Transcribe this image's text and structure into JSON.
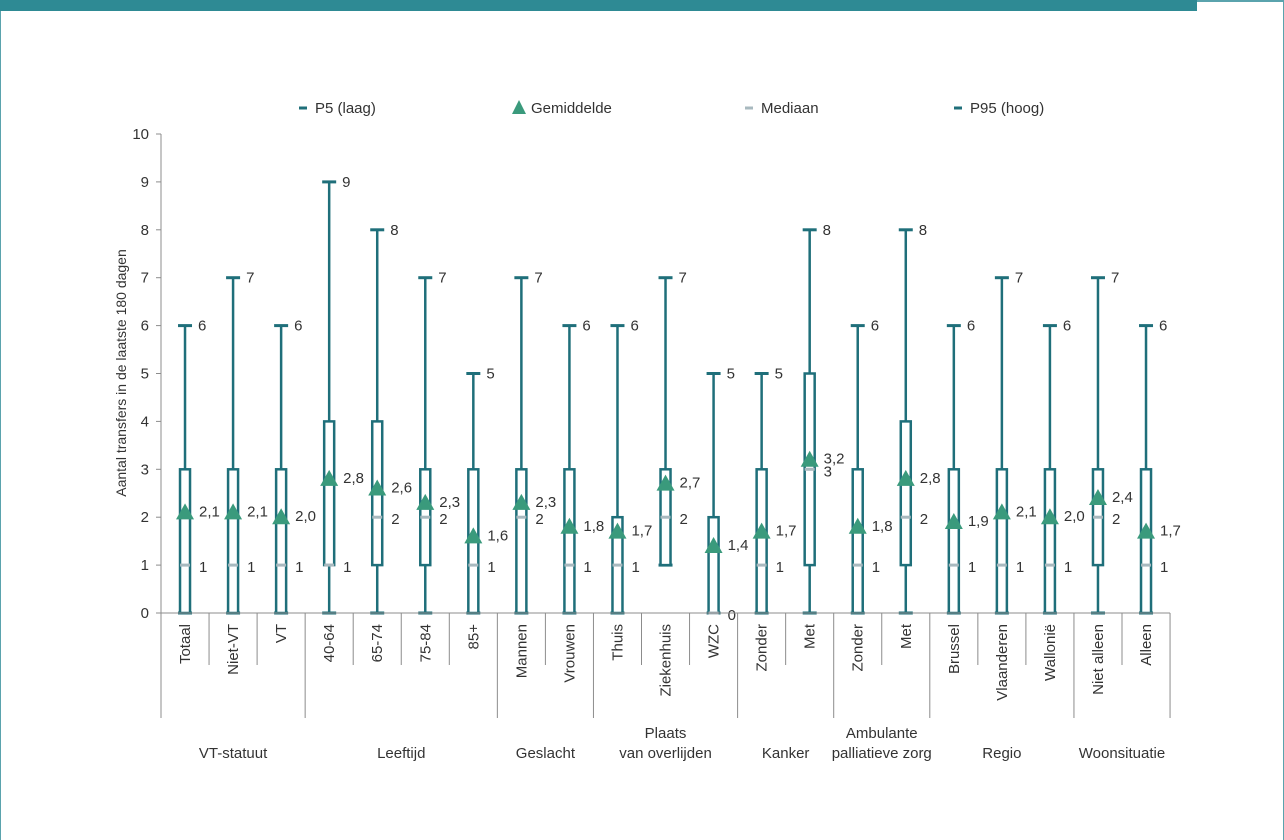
{
  "colors": {
    "accent": "#2e8a94",
    "box": "#1f6f7a",
    "mean": "#3a9a7c",
    "median": "#a8b9bf",
    "frame": "#5aa3ad"
  },
  "chart_data": {
    "type": "boxplot",
    "ylabel": "Aantal transfers in de laatste 180 dagen",
    "ylim": [
      0,
      10
    ],
    "yticks": [
      "0",
      "1",
      "2",
      "3",
      "4",
      "5",
      "6",
      "7",
      "8",
      "9",
      "10"
    ],
    "legend": {
      "position": "top",
      "items": [
        {
          "label": "P5 (laag)",
          "marker": "dash"
        },
        {
          "label": "Gemiddelde",
          "marker": "triangle"
        },
        {
          "label": "Mediaan",
          "marker": "light-dash"
        },
        {
          "label": "P95 (hoog)",
          "marker": "dash"
        }
      ]
    },
    "categories": [
      "Totaal",
      "Niet-VT",
      "VT",
      "40-64",
      "65-74",
      "75-84",
      "85+",
      "Mannen",
      "Vrouwen",
      "Thuis",
      "Ziekenhuis",
      "WZC",
      "Zonder",
      "Met",
      "Zonder",
      "Met",
      "Brussel",
      "Vlaanderen",
      "Wallonië",
      "Niet alleen",
      "Alleen"
    ],
    "p5": [
      0,
      0,
      0,
      0,
      0,
      0,
      0,
      0,
      0,
      0,
      1,
      0,
      0,
      0,
      0,
      0,
      0,
      0,
      0,
      0,
      0
    ],
    "q1": [
      0,
      0,
      0,
      1,
      1,
      1,
      0,
      0,
      0,
      0,
      1,
      0,
      0,
      1,
      0,
      1,
      0,
      0,
      0,
      1,
      0
    ],
    "median": [
      1,
      1,
      1,
      1,
      2,
      2,
      1,
      2,
      1,
      1,
      2,
      0,
      1,
      3,
      1,
      2,
      1,
      1,
      1,
      2,
      1
    ],
    "q3": [
      3,
      3,
      3,
      4,
      4,
      3,
      3,
      3,
      3,
      2,
      3,
      2,
      3,
      5,
      3,
      4,
      3,
      3,
      3,
      3,
      3
    ],
    "p95": [
      6,
      7,
      6,
      9,
      8,
      7,
      5,
      7,
      6,
      6,
      7,
      5,
      5,
      8,
      6,
      8,
      6,
      7,
      6,
      7,
      6
    ],
    "mean": [
      2.1,
      2.1,
      2.0,
      2.8,
      2.6,
      2.3,
      1.6,
      2.3,
      1.8,
      1.7,
      2.7,
      1.4,
      1.7,
      3.2,
      1.8,
      2.8,
      1.9,
      2.1,
      2.0,
      2.4,
      1.7
    ],
    "p95_labels": [
      "6",
      "7",
      "6",
      "9",
      "8",
      "7",
      "5",
      "7",
      "6",
      "6",
      "7",
      "5",
      "5",
      "8",
      "6",
      "8",
      "6",
      "7",
      "6",
      "7",
      "6"
    ],
    "mean_labels": [
      "2,1",
      "2,1",
      "2,0",
      "2,8",
      "2,6",
      "2,3",
      "1,6",
      "2,3",
      "1,8",
      "1,7",
      "2,7",
      "1,4",
      "1,7",
      "3,2",
      "1,8",
      "2,8",
      "1,9",
      "2,1",
      "2,0",
      "2,4",
      "1,7"
    ],
    "median_labels": [
      "1",
      "1",
      "1",
      "1",
      "2",
      "2",
      "1",
      "2",
      "1",
      "1",
      "2",
      "0",
      "1",
      "3",
      "1",
      "2",
      "1",
      "1",
      "1",
      "2",
      "1"
    ],
    "groups": [
      {
        "label_lines": [
          "VT-statuut"
        ],
        "span": [
          0,
          2
        ]
      },
      {
        "label_lines": [
          "Leeftijd"
        ],
        "span": [
          3,
          6
        ]
      },
      {
        "label_lines": [
          "Geslacht"
        ],
        "span": [
          7,
          8
        ]
      },
      {
        "label_lines": [
          "Plaats",
          "van overlijden"
        ],
        "span": [
          9,
          11
        ]
      },
      {
        "label_lines": [
          "Kanker"
        ],
        "span": [
          12,
          13
        ]
      },
      {
        "label_lines": [
          "Ambulante",
          "palliatieve zorg"
        ],
        "span": [
          14,
          15
        ]
      },
      {
        "label_lines": [
          "Regio"
        ],
        "span": [
          16,
          18
        ]
      },
      {
        "label_lines": [
          "Woonsituatie"
        ],
        "span": [
          19,
          20
        ]
      }
    ]
  }
}
